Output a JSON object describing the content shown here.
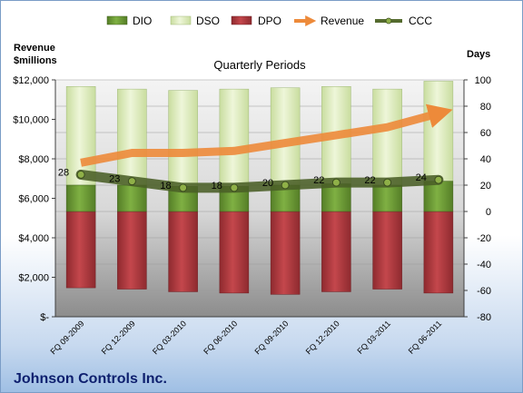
{
  "chart_data": {
    "type": "bar",
    "title": "Quarterly Periods",
    "company": "Johnson Controls Inc.",
    "left_axis_label_line1": "Revenue",
    "left_axis_label_line2": "$millions",
    "right_axis_label": "Days",
    "categories": [
      "FQ 09-2009",
      "FQ 12-2009",
      "FQ 03-2010",
      "FQ 06-2010",
      "FQ 09-2010",
      "FQ 12-2010",
      "FQ 03-2011",
      "FQ 06-2011"
    ],
    "left_axis": {
      "min": 0,
      "max": 12000,
      "step": 2000,
      "tick_labels": [
        "$-",
        "$2,000",
        "$4,000",
        "$6,000",
        "$8,000",
        "$10,000",
        "$12,000"
      ]
    },
    "right_axis": {
      "min": -80,
      "max": 100,
      "step": 20,
      "tick_labels": [
        "-80",
        "-60",
        "-40",
        "-20",
        "0",
        "20",
        "40",
        "60",
        "80",
        "100"
      ]
    },
    "series": [
      {
        "name": "DPO",
        "color": "#b0343a",
        "values": [
          -58,
          -59,
          -61,
          -62,
          -63,
          -61,
          -59,
          -62
        ]
      },
      {
        "name": "DIO",
        "color": "#6b9c34",
        "values": [
          20,
          20,
          19,
          19,
          20,
          21,
          20,
          23
        ]
      },
      {
        "name": "DSO",
        "color": "#d9eab5",
        "values": [
          75,
          73,
          73,
          74,
          74,
          74,
          73,
          76
        ]
      },
      {
        "name": "Revenue",
        "color": "#ed8a3a",
        "values": [
          7800,
          8300,
          8300,
          8400,
          8800,
          9200,
          9600,
          10300
        ]
      },
      {
        "name": "CCC",
        "color": "#556b2f",
        "values": [
          28,
          23,
          18,
          18,
          20,
          22,
          22,
          24
        ],
        "data_labels": [
          "28",
          "23",
          "18",
          "18",
          "20",
          "22",
          "22",
          "24"
        ]
      }
    ],
    "legend": {
      "position": "top",
      "order": [
        "DIO",
        "DSO",
        "DPO",
        "Revenue",
        "CCC"
      ]
    },
    "grid": true
  }
}
